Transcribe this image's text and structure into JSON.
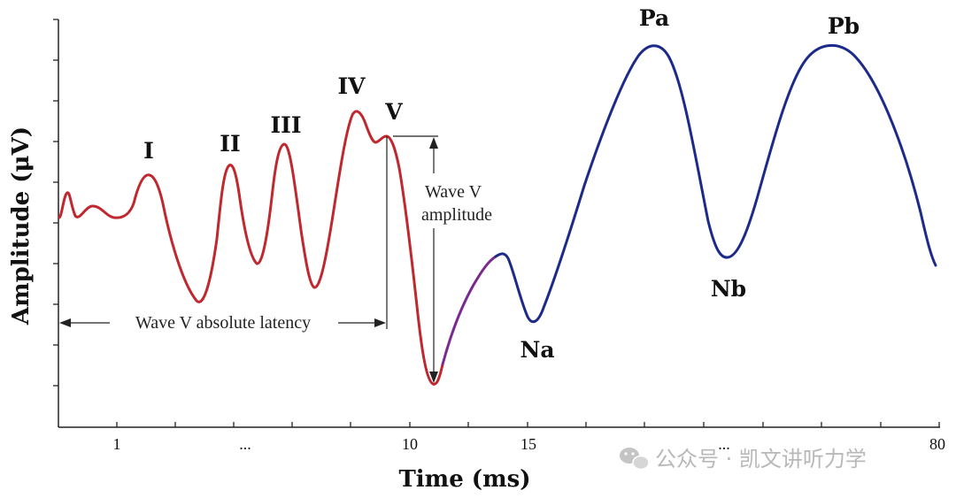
{
  "chart_data": {
    "type": "line",
    "xlabel": "Time (ms)",
    "ylabel": "Amplitude (μV)",
    "x_tick_labels": [
      "1",
      "...",
      "10",
      "15",
      "...",
      "80"
    ],
    "waves": {
      "I": "I",
      "II": "II",
      "III": "III",
      "IV": "IV",
      "V": "V",
      "Na": "Na",
      "Pa": "Pa",
      "Nb": "Nb",
      "Pb": "Pb"
    },
    "annotations": {
      "latency_label": "Wave V absolute latency",
      "amplitude_line1": "Wave V",
      "amplitude_line2": "amplitude"
    },
    "series": [
      {
        "color": "#c0282f"
      },
      {
        "color": "#7a2a8f"
      },
      {
        "color": "#1c2a8a"
      }
    ]
  },
  "watermark": {
    "text": "公众号 · 凯文讲听力学",
    "icon": "wechat-icon"
  }
}
